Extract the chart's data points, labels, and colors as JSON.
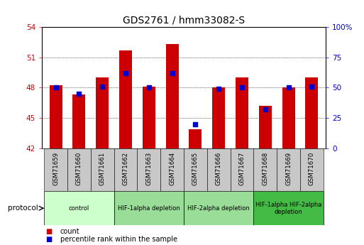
{
  "title": "GDS2761 / hmm33082-S",
  "samples": [
    "GSM71659",
    "GSM71660",
    "GSM71661",
    "GSM71662",
    "GSM71663",
    "GSM71664",
    "GSM71665",
    "GSM71666",
    "GSM71667",
    "GSM71668",
    "GSM71669",
    "GSM71670"
  ],
  "counts": [
    48.2,
    47.3,
    49.0,
    51.7,
    48.1,
    52.3,
    43.9,
    48.0,
    49.0,
    46.2,
    48.0,
    49.0
  ],
  "percentile_ranks_pct": [
    50.0,
    45.0,
    50.5,
    62.0,
    50.0,
    62.0,
    20.0,
    49.0,
    50.0,
    32.0,
    50.0,
    51.0
  ],
  "ylim_left": [
    42,
    54
  ],
  "ylim_right": [
    0,
    100
  ],
  "yticks_left": [
    42,
    45,
    48,
    51,
    54
  ],
  "ytick_labels_left": [
    "42",
    "45",
    "48",
    "51",
    "54"
  ],
  "yticks_right": [
    0,
    25,
    50,
    75,
    100
  ],
  "ytick_labels_right": [
    "0",
    "25",
    "50",
    "75",
    "100%"
  ],
  "bar_color": "#cc0000",
  "dot_color": "#0000cc",
  "bar_width": 0.55,
  "groups": [
    {
      "label": "control",
      "indices": [
        0,
        1,
        2
      ],
      "color": "#ccffcc"
    },
    {
      "label": "HIF-1alpha depletion",
      "indices": [
        3,
        4,
        5
      ],
      "color": "#99dd99"
    },
    {
      "label": "HIF-2alpha depletion",
      "indices": [
        6,
        7,
        8
      ],
      "color": "#99dd99"
    },
    {
      "label": "HIF-1alpha HIF-2alpha\ndepletion",
      "indices": [
        9,
        10,
        11
      ],
      "color": "#44bb44"
    }
  ],
  "legend_count_label": "count",
  "legend_pct_label": "percentile rank within the sample",
  "protocol_label": "protocol",
  "tick_label_color_left": "#cc0000",
  "tick_label_color_right": "#0000cc",
  "bg_color": "#ffffff",
  "sample_bg_color": "#c8c8c8"
}
